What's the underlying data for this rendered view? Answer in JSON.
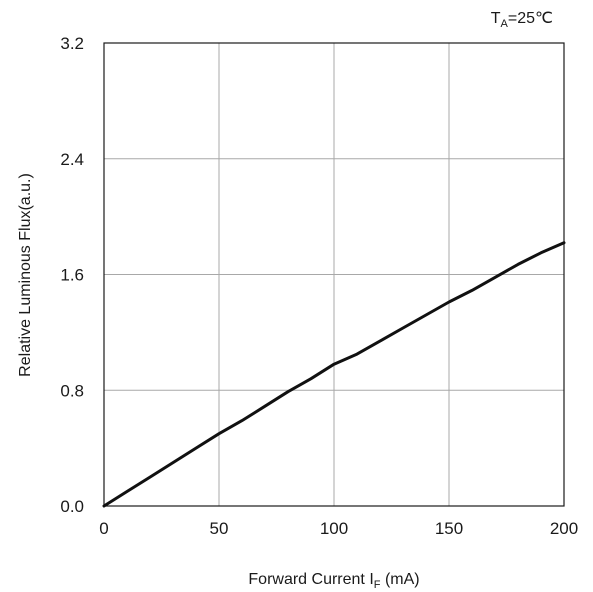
{
  "chart_data": {
    "type": "line",
    "title": "",
    "annotation": {
      "base": "T",
      "sub": "A",
      "rest": "=25℃"
    },
    "xlabel": {
      "base": "Forward Current  I",
      "sub": "F",
      "rest": "  (mA)"
    },
    "ylabel": "Relative Luminous Flux(a.u.)",
    "xlim": [
      0,
      200
    ],
    "ylim": [
      0.0,
      3.2
    ],
    "x_ticks": [
      0,
      50,
      100,
      150,
      200
    ],
    "x_tick_labels": [
      "0",
      "50",
      "100",
      "150",
      "200"
    ],
    "y_ticks": [
      0.0,
      0.8,
      1.6,
      2.4,
      3.2
    ],
    "y_tick_labels": [
      "0.0",
      "0.8",
      "1.6",
      "2.4",
      "3.2"
    ],
    "grid": true,
    "series": [
      {
        "color": "#111111",
        "x": [
          0,
          10,
          20,
          30,
          40,
          50,
          60,
          70,
          80,
          90,
          100,
          110,
          120,
          130,
          140,
          150,
          160,
          170,
          180,
          190,
          200
        ],
        "values": [
          0.0,
          0.1,
          0.2,
          0.3,
          0.4,
          0.5,
          0.59,
          0.69,
          0.79,
          0.88,
          0.98,
          1.05,
          1.14,
          1.23,
          1.32,
          1.41,
          1.49,
          1.58,
          1.67,
          1.75,
          1.82
        ]
      }
    ]
  }
}
